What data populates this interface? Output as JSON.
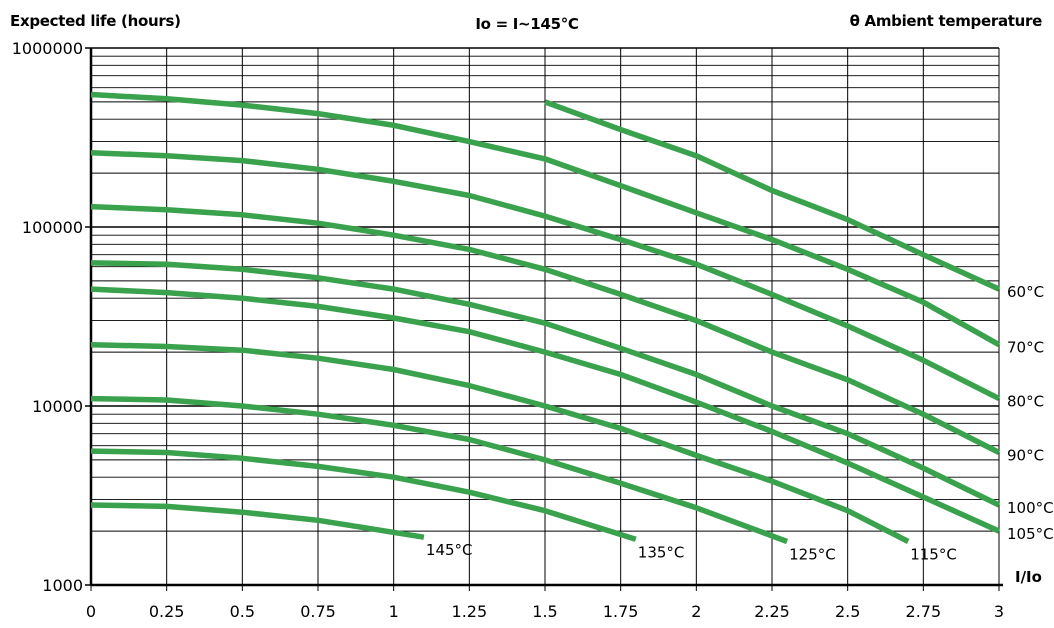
{
  "chart_data": {
    "type": "line",
    "ylabel": "Expected life (hours)",
    "subtitle": "Io = I~145°C",
    "legend_title": "θ Ambient temperature",
    "xlabel": "I/Io",
    "xlim": [
      0,
      3
    ],
    "ylim": [
      1000,
      1000000
    ],
    "yscale": "log",
    "grid": true,
    "x_ticks": [
      "0",
      "0.25",
      "0.5",
      "0.75",
      "1",
      "1.25",
      "1.5",
      "1.75",
      "2",
      "2.25",
      "2.5",
      "2.75",
      "3"
    ],
    "y_ticks": [
      "1000",
      "10000",
      "100000",
      "1000000"
    ],
    "line_color": "#3aa14d",
    "series": [
      {
        "name": "60°C",
        "x": [
          1.5,
          1.75,
          2.0,
          2.25,
          2.5,
          2.75,
          3.0
        ],
        "y": [
          500000,
          350000,
          250000,
          160000,
          110000,
          70000,
          45000
        ]
      },
      {
        "name": "70°C",
        "x": [
          0,
          0.25,
          0.5,
          0.75,
          1.0,
          1.25,
          1.5,
          1.75,
          2.0,
          2.25,
          2.5,
          2.75,
          3.0
        ],
        "y": [
          550000,
          520000,
          480000,
          430000,
          370000,
          300000,
          240000,
          170000,
          120000,
          85000,
          58000,
          38000,
          22000
        ]
      },
      {
        "name": "80°C",
        "x": [
          0,
          0.25,
          0.5,
          0.75,
          1.0,
          1.25,
          1.5,
          1.75,
          2.0,
          2.25,
          2.5,
          2.75,
          3.0
        ],
        "y": [
          260000,
          250000,
          235000,
          210000,
          180000,
          150000,
          115000,
          85000,
          62000,
          42000,
          28000,
          18000,
          11000
        ]
      },
      {
        "name": "90°C",
        "x": [
          0,
          0.25,
          0.5,
          0.75,
          1.0,
          1.25,
          1.5,
          1.75,
          2.0,
          2.25,
          2.5,
          2.75,
          3.0
        ],
        "y": [
          130000,
          125000,
          117000,
          105000,
          90000,
          75000,
          58000,
          42000,
          30000,
          20000,
          14000,
          9000,
          5500
        ]
      },
      {
        "name": "100°C",
        "x": [
          0,
          0.25,
          0.5,
          0.75,
          1.0,
          1.25,
          1.5,
          1.75,
          2.0,
          2.25,
          2.5,
          2.75,
          3.0
        ],
        "y": [
          63000,
          62000,
          58000,
          52000,
          45000,
          37000,
          29000,
          21000,
          15000,
          10000,
          7000,
          4500,
          2800
        ]
      },
      {
        "name": "105°C",
        "x": [
          0,
          0.25,
          0.5,
          0.75,
          1.0,
          1.25,
          1.5,
          1.75,
          2.0,
          2.25,
          2.5,
          2.75,
          3.0
        ],
        "y": [
          45000,
          43000,
          40000,
          36000,
          31000,
          26000,
          20000,
          15000,
          10500,
          7200,
          4800,
          3100,
          2000
        ]
      },
      {
        "name": "115°C",
        "x": [
          0,
          0.25,
          0.5,
          0.75,
          1.0,
          1.25,
          1.5,
          1.75,
          2.0,
          2.25,
          2.5,
          2.7
        ],
        "y": [
          22000,
          21500,
          20500,
          18500,
          16000,
          13000,
          10000,
          7500,
          5300,
          3800,
          2600,
          1750
        ]
      },
      {
        "name": "125°C",
        "x": [
          0,
          0.25,
          0.5,
          0.75,
          1.0,
          1.25,
          1.5,
          1.75,
          2.0,
          2.3
        ],
        "y": [
          11000,
          10800,
          10000,
          9000,
          7800,
          6500,
          5000,
          3700,
          2700,
          1750
        ]
      },
      {
        "name": "135°C",
        "x": [
          0,
          0.25,
          0.5,
          0.75,
          1.0,
          1.25,
          1.5,
          1.8
        ],
        "y": [
          5600,
          5500,
          5100,
          4600,
          4000,
          3300,
          2600,
          1800
        ]
      },
      {
        "name": "145°C",
        "x": [
          0,
          0.25,
          0.5,
          0.75,
          1.1
        ],
        "y": [
          2800,
          2750,
          2550,
          2300,
          1850
        ]
      }
    ]
  }
}
